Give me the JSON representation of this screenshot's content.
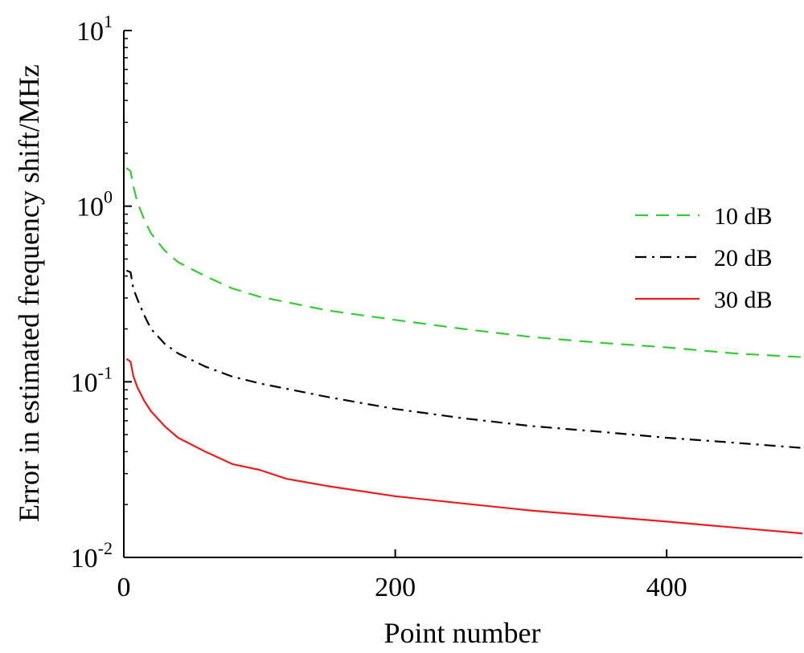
{
  "chart_data": {
    "type": "line",
    "xlabel": "Point number",
    "ylabel": "Error in estimated frequency shift/MHz",
    "xlim": [
      0,
      500
    ],
    "ylim": [
      0.01,
      10
    ],
    "yscale": "log",
    "grid": false,
    "legend_position": "right",
    "x_ticks": [
      {
        "value": 0,
        "label": "0"
      },
      {
        "value": 200,
        "label": "200"
      },
      {
        "value": 400,
        "label": "400"
      }
    ],
    "y_ticks": [
      {
        "value": 10,
        "base": "10",
        "exp": "1"
      },
      {
        "value": 1,
        "base": "10",
        "exp": "0"
      },
      {
        "value": 0.1,
        "base": "10",
        "exp": "-1"
      },
      {
        "value": 0.01,
        "base": "10",
        "exp": "-2"
      }
    ],
    "series": [
      {
        "name": "10 dB",
        "color": "#33cc33",
        "dash": "dashed",
        "x": [
          2,
          5,
          7,
          10,
          15,
          20,
          30,
          40,
          60,
          80,
          100,
          150,
          200,
          250,
          300,
          350,
          400,
          450,
          500
        ],
        "y": [
          1.65,
          1.58,
          1.3,
          1.05,
          0.84,
          0.7,
          0.56,
          0.48,
          0.4,
          0.34,
          0.305,
          0.255,
          0.225,
          0.2,
          0.18,
          0.167,
          0.157,
          0.145,
          0.138
        ]
      },
      {
        "name": "20 dB",
        "color": "#000000",
        "dash": "dash-dot",
        "x": [
          2,
          5,
          7,
          10,
          15,
          20,
          30,
          40,
          60,
          80,
          100,
          150,
          200,
          250,
          300,
          350,
          400,
          450,
          500
        ],
        "y": [
          0.43,
          0.42,
          0.34,
          0.295,
          0.24,
          0.2,
          0.165,
          0.145,
          0.122,
          0.107,
          0.098,
          0.082,
          0.07,
          0.062,
          0.056,
          0.052,
          0.048,
          0.045,
          0.042
        ]
      },
      {
        "name": "30 dB",
        "color": "#ee1c1c",
        "dash": "solid",
        "x": [
          2,
          5,
          7,
          10,
          15,
          20,
          30,
          40,
          60,
          80,
          100,
          120,
          150,
          200,
          250,
          300,
          350,
          400,
          450,
          500
        ],
        "y": [
          0.135,
          0.13,
          0.108,
          0.093,
          0.078,
          0.068,
          0.056,
          0.048,
          0.04,
          0.034,
          0.0315,
          0.028,
          0.0255,
          0.0223,
          0.0203,
          0.0185,
          0.0172,
          0.016,
          0.0148,
          0.0137
        ]
      }
    ]
  }
}
